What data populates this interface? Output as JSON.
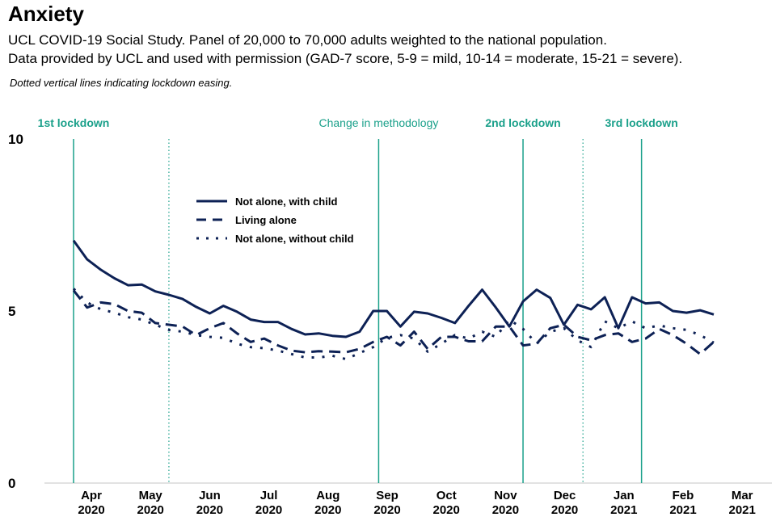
{
  "header": {
    "title": "Anxiety",
    "subtitle_line1": "UCL COVID-19 Social Study. Panel of 20,000 to 70,000 adults weighted to the national population.",
    "subtitle_line2": "Data provided by UCL and used with permission (GAD-7 score, 5-9 = mild, 10-14 = moderate, 15-21 = severe).",
    "note": "Dotted vertical lines indicating lockdown easing."
  },
  "colors": {
    "series": "#0d2155",
    "event_line": "#1aa08a",
    "axis": "#d9d9d9"
  },
  "chart_data": {
    "type": "line",
    "title": "Anxiety",
    "xlabel": "",
    "ylabel": "",
    "ylim": [
      0,
      10
    ],
    "yticks": [
      "0",
      "5",
      "10"
    ],
    "grid": false,
    "legend_position": "upper-left inside plot",
    "x_months": [
      {
        "label": "Apr",
        "year": "2020"
      },
      {
        "label": "May",
        "year": "2020"
      },
      {
        "label": "Jun",
        "year": "2020"
      },
      {
        "label": "Jul",
        "year": "2020"
      },
      {
        "label": "Aug",
        "year": "2020"
      },
      {
        "label": "Sep",
        "year": "2020"
      },
      {
        "label": "Oct",
        "year": "2020"
      },
      {
        "label": "Nov",
        "year": "2020"
      },
      {
        "label": "Dec",
        "year": "2020"
      },
      {
        "label": "Jan",
        "year": "2021"
      },
      {
        "label": "Feb",
        "year": "2021"
      },
      {
        "label": "Mar",
        "year": "2021"
      }
    ],
    "x_week_start_index_note": "weekly observations starting at 1st lockdown (late Mar 2020)",
    "events": [
      {
        "label": "1st lockdown",
        "week": 0,
        "style": "solid",
        "bold": true
      },
      {
        "label": "",
        "week": 7,
        "style": "dotted",
        "bold": false
      },
      {
        "label": "Change in methodology",
        "week": 22.4,
        "style": "solid",
        "bold": false
      },
      {
        "label": "2nd lockdown",
        "week": 33,
        "style": "solid",
        "bold": true
      },
      {
        "label": "",
        "week": 37.4,
        "style": "dotted",
        "bold": false
      },
      {
        "label": "3rd lockdown",
        "week": 41.7,
        "style": "solid",
        "bold": true
      }
    ],
    "series": [
      {
        "name": "Not alone, with child",
        "style": "solid",
        "values": [
          7.05,
          6.5,
          6.2,
          5.95,
          5.75,
          5.77,
          5.57,
          5.47,
          5.35,
          5.12,
          4.93,
          5.15,
          4.98,
          4.75,
          4.68,
          4.68,
          4.48,
          4.32,
          4.35,
          4.28,
          4.25,
          4.4,
          5.0,
          5.0,
          4.55,
          4.98,
          4.93,
          4.8,
          4.65,
          5.15,
          5.62,
          5.1,
          4.55,
          5.28,
          5.62,
          5.38,
          4.6,
          5.18,
          5.05,
          5.4,
          4.5,
          5.4,
          5.22,
          5.25,
          5.0,
          4.95,
          5.02,
          4.9
        ]
      },
      {
        "name": "Living alone",
        "style": "dashed",
        "values": [
          5.6,
          5.1,
          5.25,
          5.2,
          5.0,
          4.95,
          4.65,
          4.6,
          4.55,
          4.3,
          4.5,
          4.65,
          4.35,
          4.1,
          4.2,
          4.0,
          3.85,
          3.8,
          3.83,
          3.82,
          3.8,
          3.9,
          4.1,
          4.25,
          4.0,
          4.4,
          3.9,
          4.25,
          4.25,
          4.12,
          4.12,
          4.55,
          4.55,
          4.0,
          4.05,
          4.5,
          4.6,
          4.25,
          4.15,
          4.3,
          4.35,
          4.1,
          4.2,
          4.48,
          4.3,
          4.05,
          3.75,
          4.1
        ]
      },
      {
        "name": "Not alone, without child",
        "style": "dotted",
        "values": [
          5.65,
          5.25,
          5.05,
          4.95,
          4.82,
          4.75,
          4.6,
          4.45,
          4.4,
          4.3,
          4.25,
          4.22,
          4.05,
          3.95,
          3.92,
          3.85,
          3.75,
          3.65,
          3.65,
          3.7,
          3.6,
          3.78,
          3.95,
          4.22,
          4.3,
          4.2,
          3.82,
          4.05,
          4.3,
          4.2,
          4.4,
          4.25,
          4.75,
          4.48,
          4.05,
          4.4,
          4.5,
          4.15,
          3.95,
          4.7,
          4.5,
          4.7,
          4.5,
          4.58,
          4.5,
          4.45,
          4.3,
          4.08
        ]
      }
    ]
  }
}
